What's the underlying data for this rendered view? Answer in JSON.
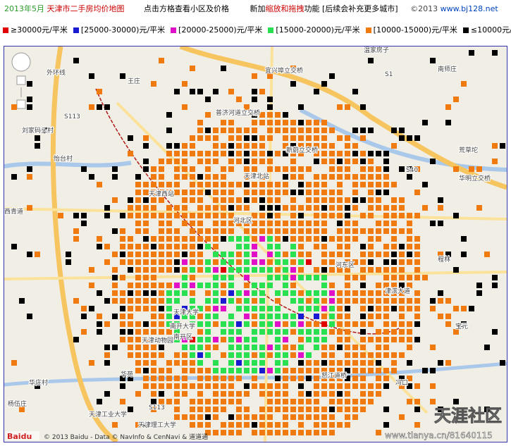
{
  "header": {
    "date": "2013年5月",
    "title": "天津市二手房均价地图",
    "hint": "点击方格查看小区及价格",
    "news_prefix": "新加",
    "news_highlight": "缩放和拖拽",
    "news_suffix": "功能 [后续会补充更多城市]",
    "copyright": "©2013",
    "site": "www.bj128.net"
  },
  "legend": [
    {
      "label": "≥30000元/平米",
      "color": "#e00000"
    },
    {
      "label": "[25000-30000)元/平米",
      "color": "#1a1ad0"
    },
    {
      "label": "[20000-25000)元/平米",
      "color": "#e010c8"
    },
    {
      "label": "[15000-20000)元/平米",
      "color": "#28e050"
    },
    {
      "label": "[10000-15000)元/平米",
      "color": "#f07a10"
    },
    {
      "label": "≤10000元/平米",
      "color": "#000000"
    }
  ],
  "map": {
    "labels": [
      {
        "text": "温家房子"
      },
      {
        "text": "南师庄"
      },
      {
        "text": "宜兴埠立交桥"
      },
      {
        "text": "王庄"
      },
      {
        "text": "普济河道立交桥"
      },
      {
        "text": "新蔚立交桥"
      },
      {
        "text": "外环线"
      },
      {
        "text": "刘家码头村"
      },
      {
        "text": "怡台村"
      },
      {
        "text": "荒草坨"
      },
      {
        "text": "华明立交桥"
      },
      {
        "text": "天津西站"
      },
      {
        "text": "西青道"
      },
      {
        "text": "天津北站"
      },
      {
        "text": "河北区"
      },
      {
        "text": "河东区"
      },
      {
        "text": "程林"
      },
      {
        "text": "津滨大道"
      },
      {
        "text": "天津大学"
      },
      {
        "text": "南开大学"
      },
      {
        "text": "天津动物园"
      },
      {
        "text": "南开区"
      },
      {
        "text": "华苑"
      },
      {
        "text": "华庄村"
      },
      {
        "text": "杨伍庄"
      },
      {
        "text": "天津工业大学"
      },
      {
        "text": "天津理工大学"
      },
      {
        "text": "宝元"
      },
      {
        "text": "冯口"
      },
      {
        "text": "怒江道桥"
      },
      {
        "text": "S113"
      },
      {
        "text": "S1"
      },
      {
        "text": "S40"
      },
      {
        "text": "S113"
      }
    ],
    "attribution": "© 2013 Baidu - Data © NavInfo & CenNavi & 道道通",
    "watermark": "天涯社区",
    "watermark_url": "www.tianya.cn/81640115"
  }
}
